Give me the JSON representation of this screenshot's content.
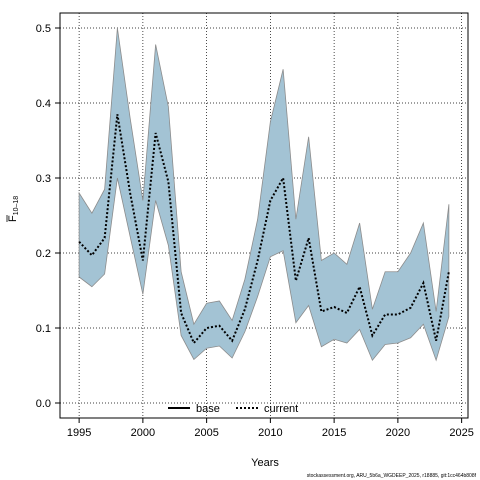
{
  "chart_data": {
    "type": "area",
    "xlabel": "Years",
    "ylabel": "F",
    "ylabel_subscript": "10–18",
    "xlim": [
      1993.5,
      2025.5
    ],
    "ylim": [
      -0.02,
      0.52
    ],
    "xticks": [
      1995,
      2000,
      2005,
      2010,
      2015,
      2020,
      2025
    ],
    "yticks": [
      0.0,
      0.1,
      0.2,
      0.3,
      0.4,
      0.5
    ],
    "grid": true,
    "legend": {
      "position": "bottom-center",
      "entries": [
        "base",
        "current"
      ]
    },
    "series": [
      {
        "name": "base",
        "x": [],
        "values": []
      },
      {
        "name": "current",
        "x": [
          1995,
          1996,
          1997,
          1998,
          1999,
          2000,
          2001,
          2002,
          2003,
          2004,
          2005,
          2006,
          2007,
          2008,
          2009,
          2010,
          2011,
          2012,
          2013,
          2014,
          2015,
          2016,
          2017,
          2018,
          2019,
          2020,
          2021,
          2022,
          2023,
          2024
        ],
        "values": [
          0.215,
          0.197,
          0.22,
          0.385,
          0.28,
          0.19,
          0.36,
          0.295,
          0.12,
          0.08,
          0.1,
          0.103,
          0.083,
          0.125,
          0.19,
          0.27,
          0.3,
          0.163,
          0.22,
          0.122,
          0.128,
          0.12,
          0.155,
          0.09,
          0.118,
          0.118,
          0.127,
          0.16,
          0.083,
          0.175
        ],
        "lower": [
          0.168,
          0.155,
          0.172,
          0.3,
          0.222,
          0.145,
          0.27,
          0.21,
          0.09,
          0.058,
          0.073,
          0.076,
          0.06,
          0.095,
          0.142,
          0.195,
          0.203,
          0.107,
          0.13,
          0.075,
          0.085,
          0.08,
          0.098,
          0.057,
          0.078,
          0.08,
          0.087,
          0.105,
          0.057,
          0.115
        ],
        "upper": [
          0.28,
          0.253,
          0.285,
          0.5,
          0.38,
          0.27,
          0.478,
          0.395,
          0.175,
          0.105,
          0.133,
          0.136,
          0.11,
          0.165,
          0.245,
          0.375,
          0.445,
          0.245,
          0.355,
          0.19,
          0.2,
          0.185,
          0.24,
          0.125,
          0.175,
          0.175,
          0.2,
          0.24,
          0.122,
          0.265
        ],
        "color": "#000000",
        "linestyle": "dotted"
      }
    ],
    "band_fill": "#a3c3d4",
    "band_stroke": "#8c8c8c",
    "footer": "stockassessment.org, ARU_5b6a_WGDEEP_2025, r18885, git:1cc464b808f"
  }
}
